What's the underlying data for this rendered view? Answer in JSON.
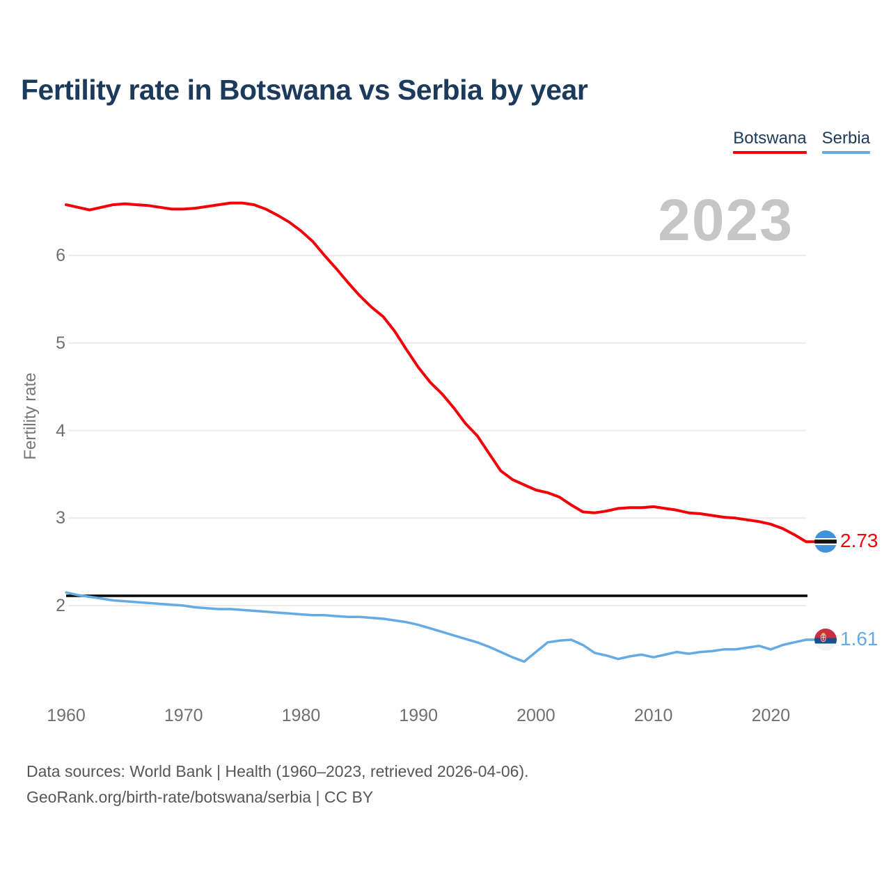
{
  "page": {
    "title": "Fertility rate in Botswana vs Serbia by year",
    "watermark_year": "2023",
    "footer_line1": "Data sources: World Bank | Health (1960–2023, retrieved 2026-04-06).",
    "footer_line2": "GeoRank.org/birth-rate/botswana/serbia | CC BY"
  },
  "legend": {
    "items": [
      {
        "label": "Botswana",
        "color": "#f40009"
      },
      {
        "label": "Serbia",
        "color": "#64abe6"
      }
    ]
  },
  "colors": {
    "title_text": "#1b3a5c",
    "tick_text": "#6f6f6f",
    "gridline": "#ececec",
    "watermark": "#c6c6c6",
    "footer_text": "#565656",
    "reference_line": "#0a0a0a"
  },
  "chart_data": {
    "type": "line",
    "title": "Fertility rate in Botswana vs Serbia by year",
    "xlabel": "",
    "ylabel": "Fertility rate",
    "watermark": "2023",
    "grid": "horizontal",
    "legend_position": "top-right",
    "x_axis": {
      "ticks": [
        1960,
        1970,
        1980,
        1990,
        2000,
        2010,
        2020
      ],
      "range": [
        1960,
        2023
      ]
    },
    "y_axis": {
      "ticks": [
        2,
        3,
        4,
        5,
        6
      ],
      "range_shown": [
        1.3,
        6.9
      ]
    },
    "reference_line": {
      "value": 2.1,
      "color": "#0a0a0a",
      "style": "solid"
    },
    "series": [
      {
        "name": "Botswana",
        "color": "#f40009",
        "stroke_width": 4,
        "end_label": "2.73",
        "end_marker": "botswana-flag",
        "years": [
          1960,
          1961,
          1962,
          1963,
          1964,
          1965,
          1966,
          1967,
          1968,
          1969,
          1970,
          1971,
          1972,
          1973,
          1974,
          1975,
          1976,
          1977,
          1978,
          1979,
          1980,
          1981,
          1982,
          1983,
          1984,
          1985,
          1986,
          1987,
          1988,
          1989,
          1990,
          1991,
          1992,
          1993,
          1994,
          1995,
          1996,
          1997,
          1998,
          1999,
          2000,
          2001,
          2002,
          2003,
          2004,
          2005,
          2006,
          2007,
          2008,
          2009,
          2010,
          2011,
          2012,
          2013,
          2014,
          2015,
          2016,
          2017,
          2018,
          2019,
          2020,
          2021,
          2022,
          2023
        ],
        "values": [
          6.58,
          6.55,
          6.52,
          6.55,
          6.58,
          6.59,
          6.58,
          6.57,
          6.55,
          6.53,
          6.53,
          6.54,
          6.56,
          6.58,
          6.6,
          6.6,
          6.58,
          6.53,
          6.46,
          6.38,
          6.28,
          6.16,
          6.0,
          5.85,
          5.69,
          5.54,
          5.41,
          5.3,
          5.13,
          4.92,
          4.72,
          4.55,
          4.42,
          4.26,
          4.08,
          3.94,
          3.74,
          3.54,
          3.44,
          3.38,
          3.32,
          3.29,
          3.24,
          3.15,
          3.07,
          3.06,
          3.08,
          3.11,
          3.12,
          3.12,
          3.13,
          3.11,
          3.09,
          3.06,
          3.05,
          3.03,
          3.01,
          3.0,
          2.98,
          2.96,
          2.93,
          2.88,
          2.81,
          2.73
        ]
      },
      {
        "name": "Serbia",
        "color": "#64abe6",
        "stroke_width": 3.5,
        "end_label": "1.61",
        "end_marker": "serbia-flag",
        "years": [
          1960,
          1961,
          1962,
          1963,
          1964,
          1965,
          1966,
          1967,
          1968,
          1969,
          1970,
          1971,
          1972,
          1973,
          1974,
          1975,
          1976,
          1977,
          1978,
          1979,
          1980,
          1981,
          1982,
          1983,
          1984,
          1985,
          1986,
          1987,
          1988,
          1989,
          1990,
          1991,
          1992,
          1993,
          1994,
          1995,
          1996,
          1997,
          1998,
          1999,
          2000,
          2001,
          2002,
          2003,
          2004,
          2005,
          2006,
          2007,
          2008,
          2009,
          2010,
          2011,
          2012,
          2013,
          2014,
          2015,
          2016,
          2017,
          2018,
          2019,
          2020,
          2021,
          2022,
          2023
        ],
        "values": [
          2.15,
          2.12,
          2.1,
          2.08,
          2.06,
          2.05,
          2.04,
          2.03,
          2.02,
          2.01,
          2.0,
          1.98,
          1.97,
          1.96,
          1.96,
          1.95,
          1.94,
          1.93,
          1.92,
          1.91,
          1.9,
          1.89,
          1.89,
          1.88,
          1.87,
          1.87,
          1.86,
          1.85,
          1.83,
          1.81,
          1.78,
          1.74,
          1.7,
          1.66,
          1.62,
          1.58,
          1.53,
          1.47,
          1.41,
          1.36,
          1.47,
          1.58,
          1.6,
          1.61,
          1.55,
          1.46,
          1.43,
          1.39,
          1.42,
          1.44,
          1.41,
          1.44,
          1.47,
          1.45,
          1.47,
          1.48,
          1.5,
          1.5,
          1.52,
          1.54,
          1.5,
          1.55,
          1.58,
          1.61
        ]
      }
    ]
  }
}
